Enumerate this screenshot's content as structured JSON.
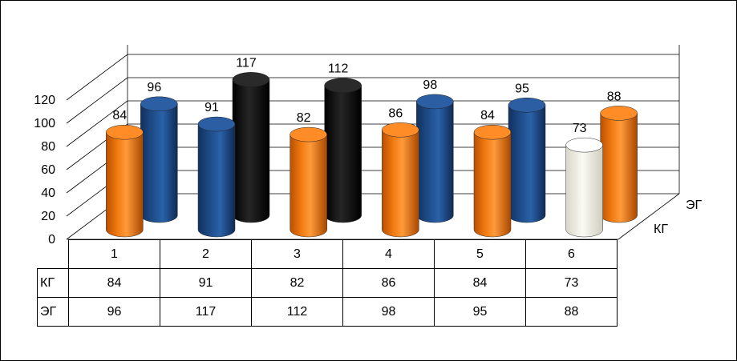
{
  "chart_data": {
    "type": "bar",
    "categories": [
      "1",
      "2",
      "3",
      "4",
      "5",
      "6"
    ],
    "series": [
      {
        "name": "КГ",
        "values": [
          84,
          91,
          82,
          86,
          84,
          73
        ]
      },
      {
        "name": "ЭГ",
        "values": [
          96,
          117,
          112,
          98,
          95,
          88
        ]
      }
    ],
    "ylim": [
      0,
      120
    ],
    "y_ticks": [
      "0",
      "20",
      "40",
      "60",
      "80",
      "100",
      "120"
    ],
    "grid": true,
    "style": "3d-cylinder",
    "data_table": true,
    "colors": {
      "КГ": [
        "#f07a10",
        "#1f4e8c",
        "#f07a10",
        "#f07a10",
        "#f07a10",
        "#f7f6ec"
      ],
      "ЭГ": [
        "#1f4e8c",
        "#101010",
        "#101010",
        "#1f4e8c",
        "#1f4e8c",
        "#f07a10"
      ]
    }
  }
}
